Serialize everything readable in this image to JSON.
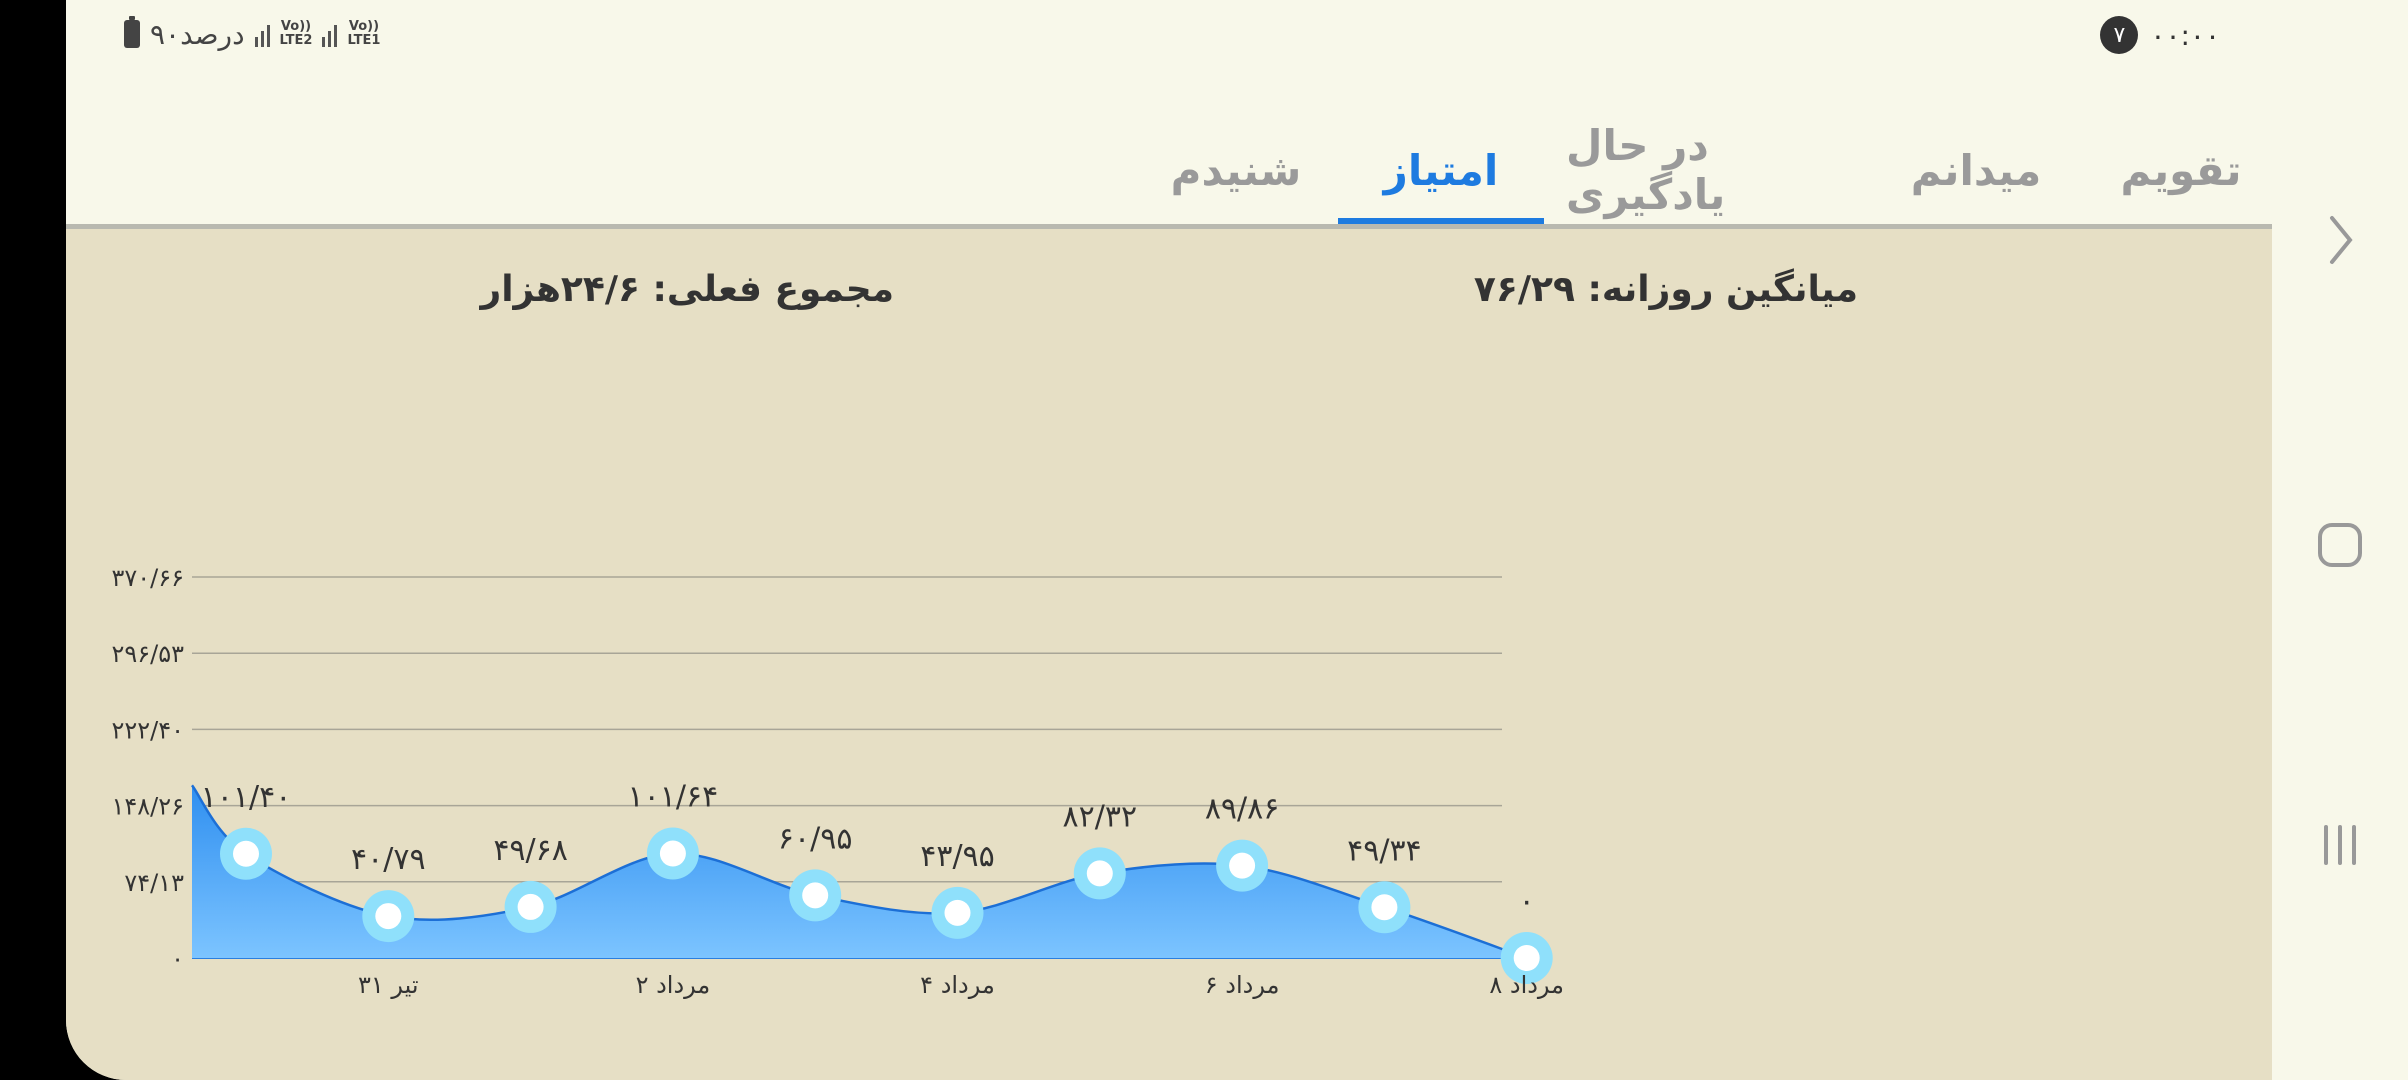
{
  "status": {
    "time": "۰۰:۰۰",
    "notification_count": "۷",
    "battery": "۹۰درصد",
    "sim1": "Vo))\nLTE1",
    "sim2": "Vo))\nLTE2"
  },
  "tabs": [
    {
      "label": "تقویم"
    },
    {
      "label": "میدانم"
    },
    {
      "label": "در حال یادگیری"
    },
    {
      "label": "امتیاز"
    },
    {
      "label": "شنیدم"
    }
  ],
  "active_tab": "امتیاز",
  "summary": {
    "daily_average": "میانگین روزانه: ۷۶/۲۹",
    "current_total": "مجموع فعلی: ۲۴/۶هزار"
  },
  "colors": {
    "accent": "#1e7be0",
    "area_top": "#2f8ff0",
    "area_bottom": "#7cc4ff",
    "point_ring": "#8fe0fb"
  },
  "chart_data": {
    "type": "area",
    "title": "",
    "xlabel": "",
    "ylabel": "",
    "ylim": [
      0,
      370.66
    ],
    "y_ticks": [
      0,
      74.13,
      148.26,
      222.4,
      296.53,
      370.66
    ],
    "y_tick_labels": [
      "۰",
      "۷۴/۱۳",
      "۱۴۸/۲۶",
      "۲۲۲/۴۰",
      "۲۹۶/۵۳",
      "۳۷۰/۶۶"
    ],
    "x_tick_labels": [
      {
        "index": 1,
        "label": "۳۱ تیر"
      },
      {
        "index": 3,
        "label": "۲ مرداد"
      },
      {
        "index": 5,
        "label": "۴ مرداد"
      },
      {
        "index": 7,
        "label": "۶ مرداد"
      },
      {
        "index": 9,
        "label": "۸ مرداد"
      }
    ],
    "series": [
      {
        "values": [
          101.4,
          40.79,
          49.68,
          101.64,
          60.95,
          43.95,
          82.32,
          89.86,
          49.34,
          0
        ],
        "labels": [
          "۱۰۱/۴۰",
          "۴۰/۷۹",
          "۴۹/۶۸",
          "۱۰۱/۶۴",
          "۶۰/۹۵",
          "۴۳/۹۵",
          "۸۲/۳۲",
          "۸۹/۸۶",
          "۴۹/۳۴",
          "۰"
        ]
      }
    ],
    "grid": true,
    "legend": "none"
  }
}
